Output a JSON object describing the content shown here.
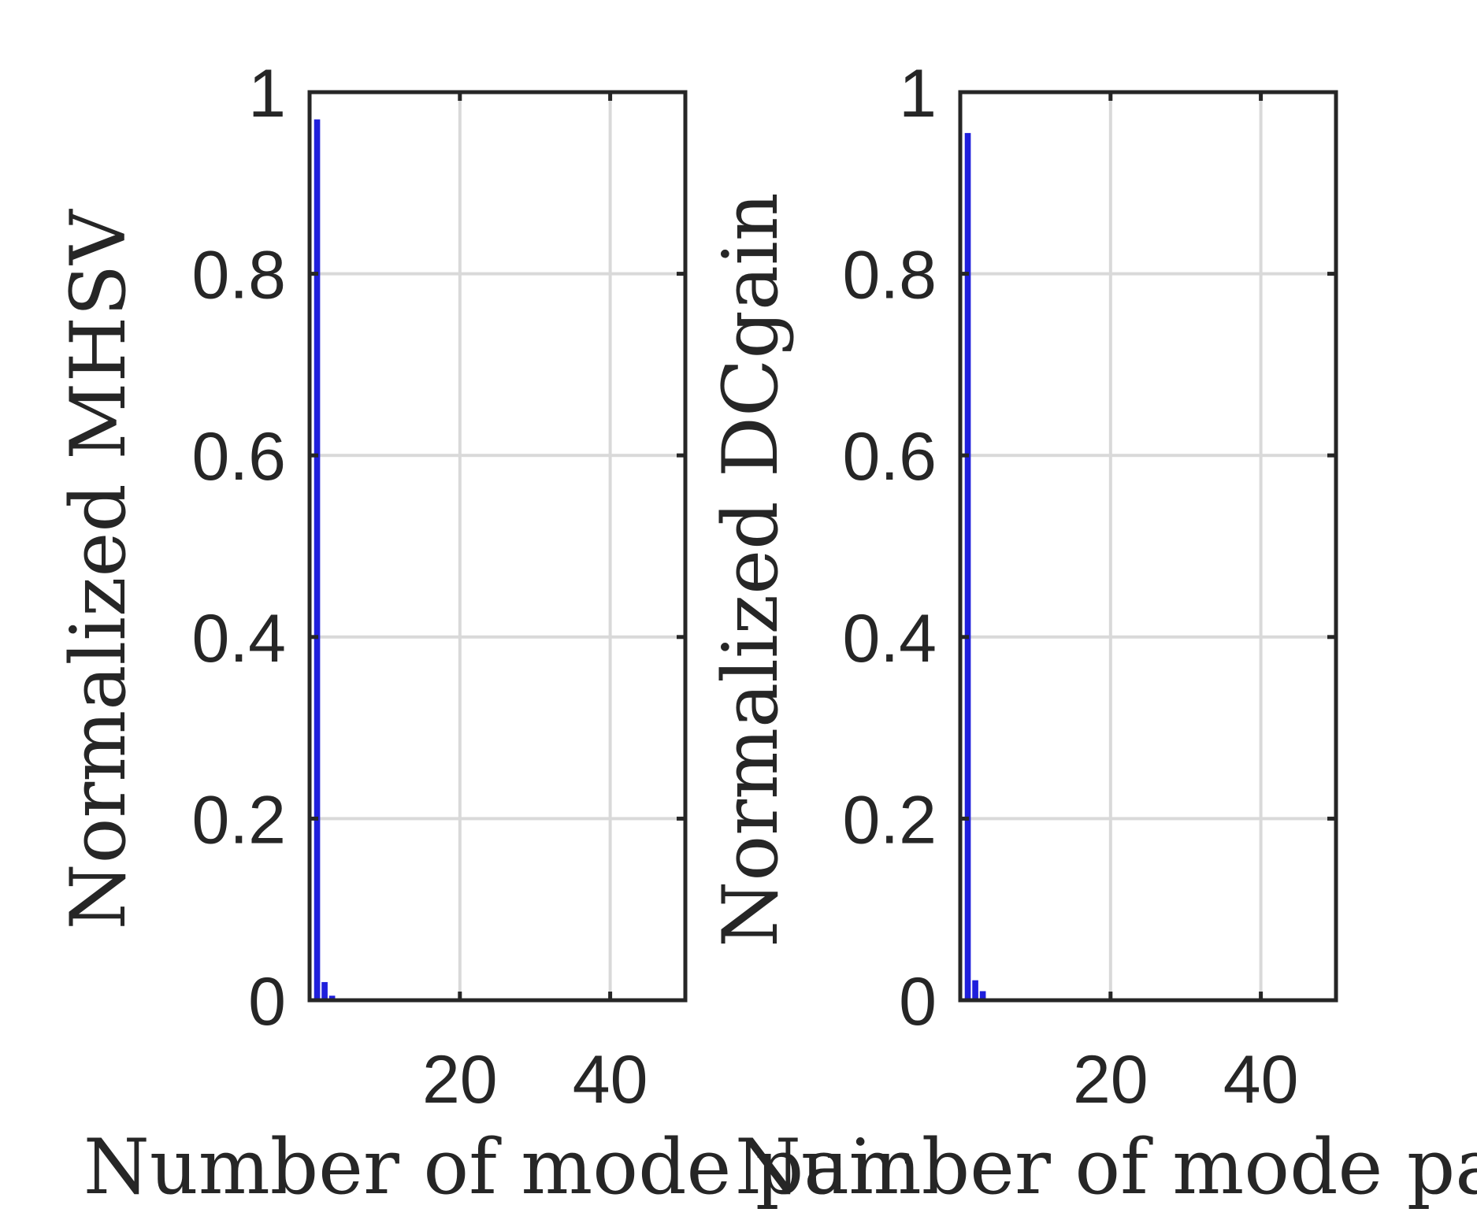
{
  "figure": {
    "background": "#ffffff",
    "axis_color": "#262626",
    "grid_color": "#d9d9d9",
    "bar_color": "#1f1fdc"
  },
  "chart_data": [
    {
      "type": "bar",
      "xlabel": "Number of mode pair",
      "ylabel": "Normalized MHSV",
      "xlim": [
        0,
        50
      ],
      "ylim": [
        0,
        1
      ],
      "xticks": [
        20,
        40
      ],
      "yticks": [
        0,
        0.2,
        0.4,
        0.6,
        0.8,
        1
      ],
      "ytick_labels": [
        "0",
        "0.2",
        "0.4",
        "0.6",
        "0.8",
        "1"
      ],
      "grid": true,
      "x": [
        1,
        2,
        3
      ],
      "values": [
        0.97,
        0.02,
        0.005
      ]
    },
    {
      "type": "bar",
      "xlabel": "Number of mode pair",
      "ylabel": "Normalized DCgain",
      "xlim": [
        0,
        50
      ],
      "ylim": [
        0,
        1
      ],
      "xticks": [
        20,
        40
      ],
      "yticks": [
        0,
        0.2,
        0.4,
        0.6,
        0.8,
        1
      ],
      "ytick_labels": [
        "0",
        "0.2",
        "0.4",
        "0.6",
        "0.8",
        "1"
      ],
      "grid": true,
      "x": [
        1,
        2,
        3
      ],
      "values": [
        0.955,
        0.022,
        0.01
      ]
    }
  ]
}
